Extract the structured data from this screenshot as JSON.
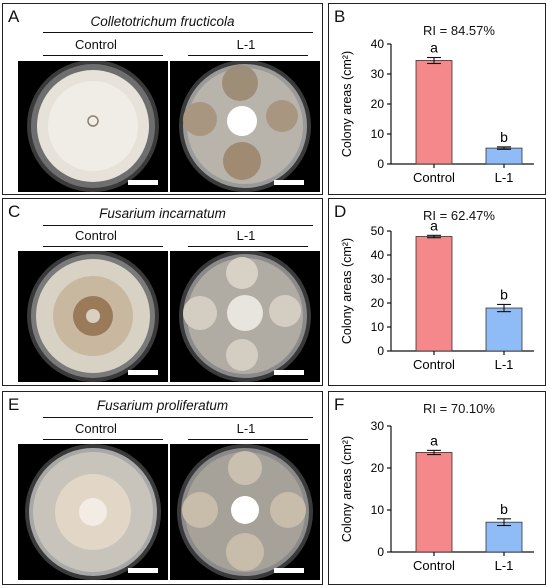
{
  "rows": [
    {
      "photo_panel": {
        "label": "A",
        "species": "Colletotrichum fructicola",
        "left_label": "Control",
        "right_label": "L-1"
      },
      "chart_panel": {
        "label": "B",
        "ri": "RI = 84.57%"
      },
      "chart_data": {
        "type": "bar",
        "categories": [
          "Control",
          "L-1"
        ],
        "values": [
          34.5,
          5.3
        ],
        "errors": [
          1.0,
          0.4
        ],
        "letters": [
          "a",
          "b"
        ],
        "ylabel": "Colony areas (cm²)",
        "ylim": [
          0,
          40
        ],
        "yticks": [
          0,
          10,
          20,
          30,
          40
        ],
        "colors": [
          "#f4888a",
          "#8fbcf7"
        ]
      }
    },
    {
      "photo_panel": {
        "label": "C",
        "species": "Fusarium incarnatum",
        "left_label": "Control",
        "right_label": "L-1"
      },
      "chart_panel": {
        "label": "D",
        "ri": "RI = 62.47%"
      },
      "chart_data": {
        "type": "bar",
        "categories": [
          "Control",
          "L-1"
        ],
        "values": [
          47.7,
          17.9
        ],
        "errors": [
          0.5,
          1.5
        ],
        "letters": [
          "a",
          "b"
        ],
        "ylabel": "Colony areas (cm²)",
        "ylim": [
          0,
          50
        ],
        "yticks": [
          0,
          10,
          20,
          30,
          40,
          50
        ],
        "colors": [
          "#f4888a",
          "#8fbcf7"
        ]
      }
    },
    {
      "photo_panel": {
        "label": "E",
        "species": "Fusarium proliferatum",
        "left_label": "Control",
        "right_label": "L-1"
      },
      "chart_panel": {
        "label": "F",
        "ri": "RI = 70.10%"
      },
      "chart_data": {
        "type": "bar",
        "categories": [
          "Control",
          "L-1"
        ],
        "values": [
          23.7,
          7.1
        ],
        "errors": [
          0.5,
          0.8
        ],
        "letters": [
          "a",
          "b"
        ],
        "ylabel": "Colony areas (cm²)",
        "ylim": [
          0,
          30
        ],
        "yticks": [
          0,
          10,
          20,
          30
        ],
        "colors": [
          "#f4888a",
          "#8fbcf7"
        ]
      }
    }
  ]
}
